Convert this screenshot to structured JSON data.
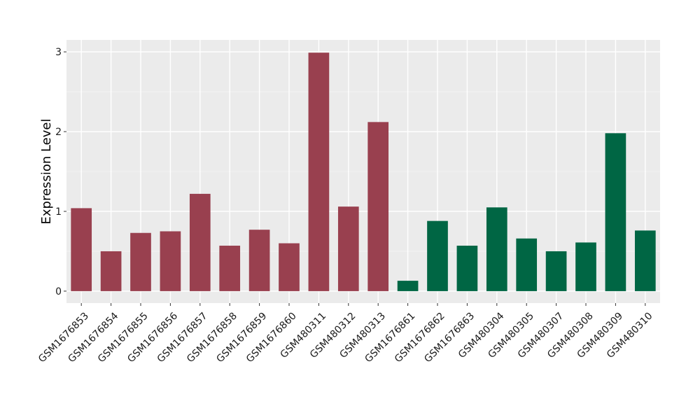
{
  "chart_data": {
    "type": "bar",
    "title": "",
    "xlabel": "",
    "ylabel": "Expression Level",
    "ylim": [
      -0.15,
      3.15
    ],
    "yticks": [
      0,
      1,
      2,
      3
    ],
    "grid": true,
    "legend": "none",
    "categories": [
      "GSM1676853",
      "GSM1676854",
      "GSM1676855",
      "GSM1676856",
      "GSM1676857",
      "GSM1676858",
      "GSM1676859",
      "GSM1676860",
      "GSM480311",
      "GSM480312",
      "GSM480313",
      "GSM1676861",
      "GSM1676862",
      "GSM1676863",
      "GSM480304",
      "GSM480305",
      "GSM480307",
      "GSM480308",
      "GSM480309",
      "GSM480310"
    ],
    "values": [
      1.04,
      0.5,
      0.73,
      0.75,
      1.22,
      0.57,
      0.77,
      0.6,
      2.99,
      1.06,
      2.12,
      0.13,
      0.88,
      0.57,
      1.05,
      0.66,
      0.5,
      0.61,
      1.98,
      0.76
    ],
    "bar_colors": [
      "#99404F",
      "#99404F",
      "#99404F",
      "#99404F",
      "#99404F",
      "#99404F",
      "#99404F",
      "#99404F",
      "#99404F",
      "#99404F",
      "#99404F",
      "#006644",
      "#006644",
      "#006644",
      "#006644",
      "#006644",
      "#006644",
      "#006644",
      "#006644",
      "#006644"
    ]
  }
}
